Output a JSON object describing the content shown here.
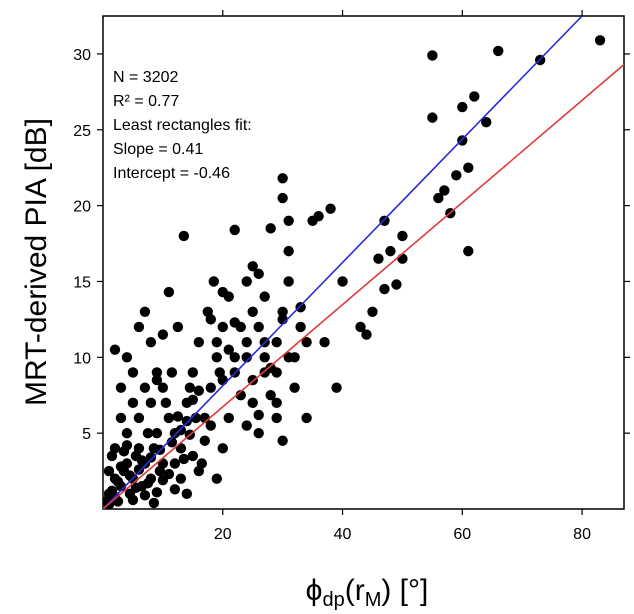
{
  "chart_data": {
    "type": "scatter",
    "xlabel": {
      "prefix": "ϕ",
      "prefix_sub": "dp",
      "mid": "(r",
      "mid_sub": "M",
      "suffix": ")  [°]"
    },
    "ylabel": "MRT-derived PIA [dB]",
    "xlim": [
      0,
      87
    ],
    "ylim": [
      0,
      32.5
    ],
    "xticks": [
      20,
      40,
      60,
      80
    ],
    "yticks": [
      5,
      10,
      15,
      20,
      25,
      30
    ],
    "annotations": [
      "N = 3202",
      "R² = 0.77",
      "Least rectangles fit:",
      "Slope = 0.41",
      "Intercept = -0.46"
    ],
    "lines": [
      {
        "color": "#2b2bd6",
        "x": [
          0,
          80
        ],
        "y": [
          0,
          32.5
        ]
      },
      {
        "color": "#e03b3b",
        "x": [
          0,
          87
        ],
        "y": [
          0,
          29.3
        ]
      }
    ],
    "point_color": "#000000",
    "series": [
      {
        "points": [
          [
            1,
            1
          ],
          [
            2,
            2
          ],
          [
            3,
            1.5
          ],
          [
            4,
            3
          ],
          [
            5,
            2
          ],
          [
            6,
            4
          ],
          [
            7,
            3
          ],
          [
            8,
            2
          ],
          [
            9,
            5
          ],
          [
            10,
            3
          ],
          [
            2,
            4
          ],
          [
            3,
            6
          ],
          [
            4,
            5
          ],
          [
            5,
            7
          ],
          [
            6,
            6
          ],
          [
            7,
            8
          ],
          [
            8,
            7
          ],
          [
            9,
            9
          ],
          [
            10,
            8
          ],
          [
            11,
            6
          ],
          [
            12,
            5
          ],
          [
            13,
            4
          ],
          [
            14,
            7
          ],
          [
            15,
            9
          ],
          [
            16,
            11
          ],
          [
            17,
            6
          ],
          [
            18,
            8
          ],
          [
            19,
            10
          ],
          [
            20,
            12
          ],
          [
            21,
            14
          ],
          [
            1,
            2.5
          ],
          [
            1.5,
            3.5
          ],
          [
            2.5,
            0.5
          ],
          [
            3.5,
            2.5
          ],
          [
            4.5,
            1
          ],
          [
            5.5,
            3.5
          ],
          [
            6.5,
            1.5
          ],
          [
            7.5,
            5
          ],
          [
            8.5,
            4
          ],
          [
            9.5,
            2.5
          ],
          [
            10.5,
            7
          ],
          [
            11.5,
            9
          ],
          [
            12.5,
            12
          ],
          [
            13.5,
            18
          ],
          [
            14.5,
            8
          ],
          [
            15.5,
            6
          ],
          [
            16.5,
            3
          ],
          [
            17.5,
            13
          ],
          [
            18.5,
            15
          ],
          [
            19.5,
            9
          ],
          [
            22,
            10
          ],
          [
            23,
            12
          ],
          [
            24,
            11
          ],
          [
            25,
            7
          ],
          [
            26,
            5
          ],
          [
            27,
            9
          ],
          [
            28,
            18.5
          ],
          [
            29,
            6
          ],
          [
            30,
            21.8
          ],
          [
            31,
            17
          ],
          [
            22,
            18.4
          ],
          [
            25,
            13
          ],
          [
            27,
            14
          ],
          [
            29,
            11
          ],
          [
            30,
            13
          ],
          [
            31,
            15
          ],
          [
            32,
            10
          ],
          [
            33,
            12
          ],
          [
            34,
            6
          ],
          [
            35,
            19
          ],
          [
            36,
            19.3
          ],
          [
            37,
            11
          ],
          [
            38,
            19.8
          ],
          [
            39,
            8
          ],
          [
            40,
            15
          ],
          [
            43,
            12
          ],
          [
            44,
            11.5
          ],
          [
            45,
            13
          ],
          [
            46,
            16.5
          ],
          [
            47,
            14.5
          ],
          [
            47,
            19
          ],
          [
            48,
            17
          ],
          [
            49,
            14.8
          ],
          [
            50,
            18
          ],
          [
            50,
            16.5
          ],
          [
            55,
            25.8
          ],
          [
            55,
            29.9
          ],
          [
            56,
            20.5
          ],
          [
            57,
            21
          ],
          [
            58,
            19.5
          ],
          [
            59,
            22
          ],
          [
            60,
            26.5
          ],
          [
            60,
            24.3
          ],
          [
            61,
            22.5
          ],
          [
            61,
            17
          ],
          [
            62,
            27.2
          ],
          [
            64,
            25.5
          ],
          [
            66,
            30.2
          ],
          [
            73,
            29.6
          ],
          [
            83,
            30.9
          ],
          [
            3,
            8
          ],
          [
            4,
            10
          ],
          [
            2,
            10.5
          ],
          [
            5,
            9
          ],
          [
            6,
            12
          ],
          [
            7,
            13
          ],
          [
            8,
            11
          ],
          [
            9,
            8.5
          ],
          [
            10,
            11.5
          ],
          [
            11,
            14.3
          ],
          [
            12,
            3
          ],
          [
            13,
            2
          ],
          [
            14,
            1
          ],
          [
            15,
            3.5
          ],
          [
            16,
            2.5
          ],
          [
            17,
            4.5
          ],
          [
            18,
            5.5
          ],
          [
            19,
            2
          ],
          [
            20,
            4
          ],
          [
            21,
            6
          ],
          [
            0.5,
            0.5
          ],
          [
            1,
            0.3
          ],
          [
            1.5,
            1.2
          ],
          [
            2,
            0.8
          ],
          [
            2.5,
            1.8
          ],
          [
            3,
            2.8
          ],
          [
            3.5,
            3.8
          ],
          [
            4,
            4.2
          ],
          [
            4.5,
            2.2
          ],
          [
            5,
            0.6
          ],
          [
            5.5,
            1.4
          ],
          [
            6,
            2.6
          ],
          [
            6.5,
            3.2
          ],
          [
            7,
            0.9
          ],
          [
            7.5,
            1.7
          ],
          [
            8,
            3.4
          ],
          [
            8.5,
            0.4
          ],
          [
            9,
            1.1
          ],
          [
            9.5,
            3.9
          ],
          [
            10,
            1.9
          ],
          [
            11,
            2.3
          ],
          [
            11.5,
            4.4
          ],
          [
            12,
            1.3
          ],
          [
            12.5,
            6.1
          ],
          [
            13,
            5.2
          ],
          [
            13.5,
            3.3
          ],
          [
            14,
            5.8
          ],
          [
            14.5,
            4.9
          ],
          [
            15,
            7.2
          ],
          [
            16,
            7.8
          ],
          [
            18,
            12.5
          ],
          [
            19,
            11
          ],
          [
            20,
            8.5
          ],
          [
            21,
            10.5
          ],
          [
            22,
            9
          ],
          [
            23,
            7.5
          ],
          [
            24,
            10
          ],
          [
            25,
            8.5
          ],
          [
            26,
            12
          ],
          [
            27,
            10
          ],
          [
            28,
            7.5
          ],
          [
            29,
            9
          ],
          [
            30,
            12.5
          ],
          [
            31,
            10
          ],
          [
            32,
            8
          ],
          [
            33,
            13.3
          ],
          [
            34,
            11
          ],
          [
            30,
            20.5
          ],
          [
            31,
            19
          ],
          [
            26,
            15.5
          ],
          [
            20,
            14.3
          ],
          [
            22,
            12.3
          ],
          [
            24,
            15
          ],
          [
            25,
            16
          ],
          [
            27,
            11
          ],
          [
            28,
            9.3
          ],
          [
            29,
            7
          ],
          [
            30,
            4.5
          ],
          [
            24,
            5.5
          ],
          [
            26,
            6.2
          ]
        ]
      }
    ]
  }
}
